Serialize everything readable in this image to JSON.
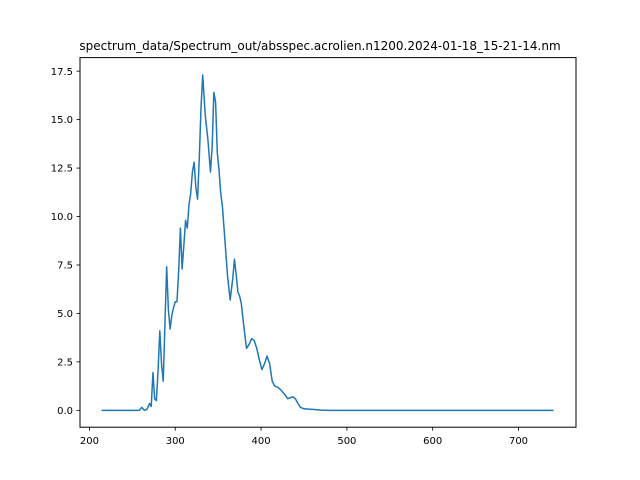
{
  "chart_data": {
    "type": "line",
    "title": "spectrum_data/Spectrum_out/absspec.acrolien.n1200.2024-01-18_15-21-14.nm",
    "xlabel": "",
    "ylabel": "",
    "xlim": [
      189,
      767
    ],
    "ylim": [
      -0.87,
      18.2
    ],
    "grid": false,
    "xticks": [
      200,
      300,
      400,
      500,
      600,
      700
    ],
    "xtick_labels": [
      "200",
      "300",
      "400",
      "500",
      "600",
      "700"
    ],
    "yticks": [
      0.0,
      2.5,
      5.0,
      7.5,
      10.0,
      12.5,
      15.0,
      17.5
    ],
    "ytick_labels": [
      "0.0",
      "2.5",
      "5.0",
      "7.5",
      "10.0",
      "12.5",
      "15.0",
      "17.5"
    ],
    "series": [
      {
        "color": "#1f77b4",
        "x": [
          215,
          240,
          258,
          261,
          264,
          267,
          270,
          272,
          274,
          276,
          278,
          280,
          282,
          284,
          286,
          288,
          290,
          292,
          294,
          296,
          298,
          300,
          302,
          304,
          306,
          308,
          310,
          312,
          314,
          316,
          318,
          320,
          322,
          324,
          326,
          328,
          330,
          332,
          335,
          338,
          341,
          343,
          345,
          347,
          349,
          351,
          353,
          355,
          358,
          361,
          364,
          367,
          369,
          371,
          373,
          375,
          377,
          380,
          383,
          386,
          389,
          392,
          395,
          398,
          401,
          404,
          407,
          410,
          413,
          416,
          419,
          422,
          425,
          428,
          431,
          434,
          437,
          440,
          443,
          446,
          450,
          455,
          460,
          465,
          470,
          480,
          500,
          550,
          600,
          650,
          700,
          740
        ],
        "y": [
          0.0,
          0.0,
          0.0,
          0.15,
          0.0,
          0.05,
          0.35,
          0.2,
          1.95,
          0.6,
          0.5,
          2.1,
          4.1,
          2.4,
          1.5,
          4.5,
          7.4,
          5.2,
          4.2,
          4.9,
          5.3,
          5.6,
          5.6,
          7.2,
          9.4,
          7.3,
          8.5,
          9.8,
          9.4,
          10.6,
          11.2,
          12.3,
          12.8,
          11.5,
          10.9,
          13.0,
          15.6,
          17.3,
          15.2,
          14.0,
          12.3,
          13.6,
          16.4,
          15.9,
          13.3,
          12.4,
          11.2,
          10.5,
          8.7,
          6.9,
          5.7,
          6.8,
          7.8,
          7.0,
          6.1,
          5.9,
          5.5,
          4.3,
          3.2,
          3.4,
          3.7,
          3.6,
          3.2,
          2.6,
          2.1,
          2.4,
          2.8,
          2.4,
          1.5,
          1.25,
          1.2,
          1.1,
          0.95,
          0.8,
          0.6,
          0.65,
          0.7,
          0.6,
          0.35,
          0.15,
          0.08,
          0.06,
          0.05,
          0.03,
          0.01,
          0.0,
          0.0,
          0.0,
          0.0,
          0.0,
          0.0,
          0.0
        ]
      }
    ]
  }
}
